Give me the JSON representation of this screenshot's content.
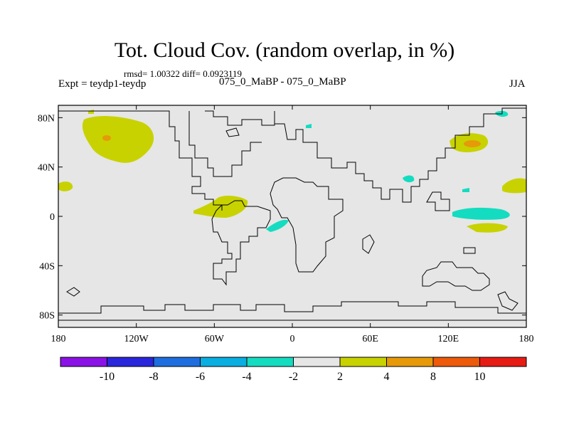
{
  "header": {
    "title": "Tot. Cloud Cov. (random overlap, in %)",
    "stats": "rmsd= 1.00322  diff= 0.0923119",
    "experiment": "Expt = teydp1-teydp",
    "runs": "075_0_MaBP - 075_0_MaBP",
    "season": "JJA"
  },
  "chart_data": {
    "type": "heatmap",
    "title": "Tot. Cloud Cov. (random overlap, in %)",
    "xlabel": "",
    "ylabel": "",
    "xlim": [
      -180,
      180
    ],
    "ylim": [
      -90,
      90
    ],
    "x_ticks": [
      {
        "value": -180,
        "label": "180"
      },
      {
        "value": -120,
        "label": "120W"
      },
      {
        "value": -60,
        "label": "60W"
      },
      {
        "value": 0,
        "label": "0"
      },
      {
        "value": 60,
        "label": "60E"
      },
      {
        "value": 120,
        "label": "120E"
      },
      {
        "value": 180,
        "label": "180"
      }
    ],
    "y_ticks": [
      {
        "value": 80,
        "label": "80N"
      },
      {
        "value": 40,
        "label": "40N"
      },
      {
        "value": 0,
        "label": "0"
      },
      {
        "value": -40,
        "label": "40S"
      },
      {
        "value": -80,
        "label": "80S"
      }
    ],
    "background_level": "-2 to 2",
    "colorbar": {
      "levels": [
        -10,
        -8,
        -6,
        -4,
        -2,
        2,
        4,
        8,
        10
      ],
      "labels": [
        "-10",
        "-8",
        "-6",
        "-4",
        "-2",
        "2",
        "4",
        "8",
        "10"
      ],
      "colors": [
        "#8a12e6",
        "#2a26dc",
        "#1e6ee0",
        "#0aaee0",
        "#14dcc0",
        "#e6e6e6",
        "#c8d200",
        "#e69a0a",
        "#ec5a0a",
        "#e61c14"
      ]
    },
    "anomaly_regions": [
      {
        "name": "North Pacific",
        "lon_range": [
          -170,
          -130
        ],
        "lat_range": [
          35,
          75
        ],
        "range": "2 to 4",
        "core": "4 to 8"
      },
      {
        "name": "East Pacific subtropics",
        "lon_range": [
          -180,
          -175
        ],
        "lat_range": [
          15,
          25
        ],
        "range": "2 to 4"
      },
      {
        "name": "Central America / Pacific",
        "lon_range": [
          -75,
          -35
        ],
        "lat_range": [
          0,
          15
        ],
        "range": "2 to 4"
      },
      {
        "name": "Tropical Atlantic",
        "lon_range": [
          -20,
          -10
        ],
        "lat_range": [
          -15,
          -5
        ],
        "range": "-4 to -2"
      },
      {
        "name": "Northeast Asia",
        "lon_range": [
          120,
          150
        ],
        "lat_range": [
          40,
          60
        ],
        "range": "2 to 4",
        "core": "4 to 8"
      },
      {
        "name": "Western Pacific equatorial",
        "lon_range": [
          125,
          165
        ],
        "lat_range": [
          -5,
          5
        ],
        "range": "-4 to -2"
      },
      {
        "name": "Western Pacific south",
        "lon_range": [
          135,
          165
        ],
        "lat_range": [
          -15,
          -8
        ],
        "range": "2 to 4"
      },
      {
        "name": "Central Pacific north",
        "lon_range": [
          165,
          180
        ],
        "lat_range": [
          15,
          25
        ],
        "range": "2 to 4"
      },
      {
        "name": "Arctic Siberia",
        "lon_range": [
          160,
          170
        ],
        "lat_range": [
          75,
          80
        ],
        "range": "-4 to -2"
      },
      {
        "name": "Indian Ocean",
        "lon_range": [
          85,
          95
        ],
        "lat_range": [
          20,
          28
        ],
        "range": "-4 to -2"
      }
    ]
  }
}
